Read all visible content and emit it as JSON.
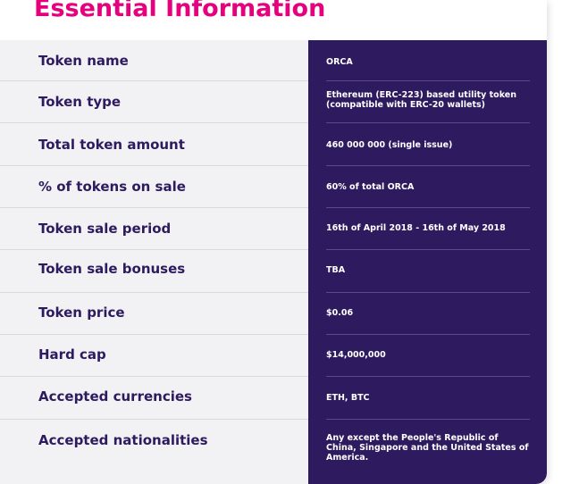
{
  "header": {
    "title": "Essential Information"
  },
  "rows": [
    {
      "label": "Token name",
      "value": "ORCA"
    },
    {
      "label": "Token type",
      "value": "Ethereum (ERC-223) based utility token (compatible with ERC-20 wallets)"
    },
    {
      "label": "Total token amount",
      "value": "460 000 000 (single issue)"
    },
    {
      "label": "% of tokens on sale",
      "value": "60% of total ORCA"
    },
    {
      "label": "Token sale period",
      "value": "16th of April 2018 - 16th of May 2018"
    },
    {
      "label": "Token sale bonuses",
      "value": "TBA"
    },
    {
      "label": "Token price",
      "value": "$0.06"
    },
    {
      "label": "Hard cap",
      "value": "$14,000,000"
    },
    {
      "label": "Accepted currencies",
      "value": "ETH, BTC"
    },
    {
      "label": "Accepted nationalities",
      "value": "Any except the People's Republic of China, Singapore and the United States of America."
    }
  ],
  "colors": {
    "accent": "#e5007e",
    "panel": "#2e1a5e",
    "label": "#2e1a5e",
    "background": "#f2f2f4"
  }
}
